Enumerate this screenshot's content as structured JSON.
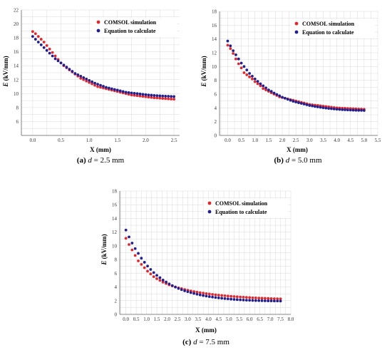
{
  "colors": {
    "simulation": "#e4262c",
    "equation": "#1f1f8f",
    "grid": "#d9d9d9",
    "axis": "#666666"
  },
  "chart_data": [
    {
      "type": "scatter",
      "caption": {
        "label": "(a)",
        "variable": "d",
        "rest": " = 2.5 mm"
      },
      "xlabel": "X (mm)",
      "ylabel": {
        "symbol": "E",
        "unit": " (kV/mm)"
      },
      "xlim": [
        -0.2,
        2.6
      ],
      "ylim": [
        4,
        22
      ],
      "xticks": [
        0.0,
        0.5,
        1.0,
        1.5,
        2.0,
        2.5
      ],
      "xtick_labels": [
        "0.0",
        "0.5",
        "1.0",
        "1.5",
        "2.0",
        "2.5"
      ],
      "yticks": [
        6,
        8,
        10,
        12,
        14,
        16,
        18,
        20,
        22
      ],
      "grid": true,
      "legend_position": "top-right",
      "series": [
        {
          "name": "COMSOL simulation",
          "color": "#e4262c",
          "x": [
            0.0,
            0.05,
            0.1,
            0.15,
            0.2,
            0.25,
            0.3,
            0.35,
            0.4,
            0.45,
            0.5,
            0.55,
            0.6,
            0.65,
            0.7,
            0.75,
            0.8,
            0.85,
            0.9,
            0.95,
            1.0,
            1.05,
            1.1,
            1.15,
            1.2,
            1.25,
            1.3,
            1.35,
            1.4,
            1.45,
            1.5,
            1.55,
            1.6,
            1.65,
            1.7,
            1.75,
            1.8,
            1.85,
            1.9,
            1.95,
            2.0,
            2.05,
            2.1,
            2.15,
            2.2,
            2.25,
            2.3,
            2.35,
            2.4,
            2.45,
            2.5
          ],
          "y": [
            18.9,
            18.6,
            18.2,
            17.8,
            17.4,
            16.9,
            16.4,
            15.9,
            15.4,
            14.9,
            14.4,
            14.0,
            13.7,
            13.4,
            13.1,
            12.8,
            12.5,
            12.2,
            12.0,
            11.8,
            11.6,
            11.4,
            11.2,
            11.0,
            10.9,
            10.8,
            10.7,
            10.6,
            10.5,
            10.4,
            10.3,
            10.2,
            10.1,
            10.0,
            9.9,
            9.8,
            9.75,
            9.7,
            9.65,
            9.6,
            9.55,
            9.5,
            9.45,
            9.4,
            9.38,
            9.35,
            9.3,
            9.28,
            9.25,
            9.22,
            9.2
          ]
        },
        {
          "name": "Equation to calculate",
          "color": "#1f1f8f",
          "x": [
            0.0,
            0.05,
            0.1,
            0.15,
            0.2,
            0.25,
            0.3,
            0.35,
            0.4,
            0.45,
            0.5,
            0.55,
            0.6,
            0.65,
            0.7,
            0.75,
            0.8,
            0.85,
            0.9,
            0.95,
            1.0,
            1.05,
            1.1,
            1.15,
            1.2,
            1.25,
            1.3,
            1.35,
            1.4,
            1.45,
            1.5,
            1.55,
            1.6,
            1.65,
            1.7,
            1.75,
            1.8,
            1.85,
            1.9,
            1.95,
            2.0,
            2.05,
            2.1,
            2.15,
            2.2,
            2.25,
            2.3,
            2.35,
            2.4,
            2.45,
            2.5
          ],
          "y": [
            18.2,
            17.8,
            17.4,
            17.0,
            16.6,
            16.2,
            15.8,
            15.4,
            15.0,
            14.7,
            14.4,
            14.1,
            13.8,
            13.5,
            13.2,
            12.9,
            12.7,
            12.5,
            12.3,
            12.1,
            11.9,
            11.7,
            11.5,
            11.35,
            11.2,
            11.05,
            10.9,
            10.8,
            10.7,
            10.6,
            10.5,
            10.4,
            10.3,
            10.2,
            10.15,
            10.1,
            10.05,
            10.0,
            9.95,
            9.9,
            9.85,
            9.8,
            9.77,
            9.74,
            9.71,
            9.68,
            9.66,
            9.64,
            9.62,
            9.6,
            9.58
          ]
        }
      ]
    },
    {
      "type": "scatter",
      "caption": {
        "label": "(b)",
        "variable": "d",
        "rest": " = 5.0 mm"
      },
      "xlabel": "X (mm)",
      "ylabel": {
        "symbol": "E",
        "unit": " (kV/mm)"
      },
      "xlim": [
        -0.3,
        5.5
      ],
      "ylim": [
        0,
        18
      ],
      "xticks": [
        0.0,
        0.5,
        1.0,
        1.5,
        2.0,
        2.5,
        3.0,
        3.5,
        4.0,
        4.5,
        5.0,
        5.5
      ],
      "xtick_labels": [
        "0.0",
        "0.5",
        "1.0",
        "1.5",
        "2.0",
        "2.5",
        "3.0",
        "3.5",
        "4.0",
        "4.5",
        "5.0",
        "5.5"
      ],
      "yticks": [
        0,
        2,
        4,
        6,
        8,
        10,
        12,
        14,
        16,
        18
      ],
      "grid": true,
      "legend_position": "top-right",
      "series": [
        {
          "name": "COMSOL simulation",
          "color": "#e4262c",
          "x": [
            0.0,
            0.1,
            0.2,
            0.3,
            0.4,
            0.5,
            0.6,
            0.7,
            0.8,
            0.9,
            1.0,
            1.1,
            1.2,
            1.3,
            1.4,
            1.5,
            1.6,
            1.7,
            1.8,
            1.9,
            2.0,
            2.1,
            2.2,
            2.3,
            2.4,
            2.5,
            2.6,
            2.7,
            2.8,
            2.9,
            3.0,
            3.1,
            3.2,
            3.3,
            3.4,
            3.5,
            3.6,
            3.7,
            3.8,
            3.9,
            4.0,
            4.1,
            4.2,
            4.3,
            4.4,
            4.5,
            4.6,
            4.7,
            4.8,
            4.9,
            5.0
          ],
          "y": [
            13.1,
            12.6,
            11.9,
            11.1,
            10.4,
            9.8,
            9.1,
            8.8,
            8.5,
            8.2,
            7.8,
            7.5,
            7.2,
            6.8,
            6.6,
            6.4,
            6.2,
            6.0,
            5.8,
            5.6,
            5.5,
            5.4,
            5.3,
            5.2,
            5.1,
            5.0,
            4.9,
            4.8,
            4.7,
            4.6,
            4.5,
            4.45,
            4.4,
            4.35,
            4.3,
            4.25,
            4.2,
            4.15,
            4.1,
            4.05,
            4.0,
            3.98,
            3.96,
            3.94,
            3.92,
            3.9,
            3.88,
            3.86,
            3.84,
            3.82,
            3.8
          ]
        },
        {
          "name": "Equation to calculate",
          "color": "#1f1f8f",
          "x": [
            0.0,
            0.1,
            0.2,
            0.3,
            0.4,
            0.5,
            0.6,
            0.7,
            0.8,
            0.9,
            1.0,
            1.1,
            1.2,
            1.3,
            1.4,
            1.5,
            1.6,
            1.7,
            1.8,
            1.9,
            2.0,
            2.1,
            2.2,
            2.3,
            2.4,
            2.5,
            2.6,
            2.7,
            2.8,
            2.9,
            3.0,
            3.1,
            3.2,
            3.3,
            3.4,
            3.5,
            3.6,
            3.7,
            3.8,
            3.9,
            4.0,
            4.1,
            4.2,
            4.3,
            4.4,
            4.5,
            4.6,
            4.7,
            4.8,
            4.9,
            5.0
          ],
          "y": [
            13.7,
            13.0,
            12.3,
            11.7,
            11.1,
            10.5,
            10.0,
            9.5,
            9.0,
            8.6,
            8.2,
            7.85,
            7.5,
            7.2,
            6.9,
            6.6,
            6.4,
            6.15,
            5.95,
            5.75,
            5.55,
            5.4,
            5.25,
            5.1,
            4.95,
            4.85,
            4.75,
            4.65,
            4.55,
            4.45,
            4.35,
            4.28,
            4.2,
            4.14,
            4.08,
            4.02,
            3.97,
            3.92,
            3.88,
            3.84,
            3.8,
            3.77,
            3.74,
            3.72,
            3.7,
            3.68,
            3.66,
            3.65,
            3.64,
            3.63,
            3.62
          ]
        }
      ]
    },
    {
      "type": "scatter",
      "caption": {
        "label": "(c)",
        "variable": "d",
        "rest": " = 7.5 mm"
      },
      "xlabel": "X (mm)",
      "ylabel": {
        "symbol": "E",
        "unit": " (kV/mm)"
      },
      "xlim": [
        -0.3,
        8.0
      ],
      "ylim": [
        0,
        18
      ],
      "xticks": [
        0.0,
        0.5,
        1.0,
        1.5,
        2.0,
        2.5,
        3.0,
        3.5,
        4.0,
        4.5,
        5.0,
        5.5,
        6.0,
        6.5,
        7.0,
        7.5,
        8.0
      ],
      "xtick_labels": [
        "0.0",
        "0.5",
        "1.0",
        "1.5",
        "2.0",
        "2.5",
        "3.0",
        "3.5",
        "4.0",
        "4.5",
        "5.0",
        "5.5",
        "6.0",
        "6.5",
        "7.0",
        "7.5",
        "8.0"
      ],
      "yticks": [
        0,
        2,
        4,
        6,
        8,
        10,
        12,
        14,
        16,
        18
      ],
      "grid": true,
      "legend_position": "top-right",
      "series": [
        {
          "name": "COMSOL simulation",
          "color": "#e4262c",
          "x": [
            0.0,
            0.15,
            0.3,
            0.45,
            0.6,
            0.75,
            0.9,
            1.05,
            1.2,
            1.35,
            1.5,
            1.65,
            1.8,
            1.95,
            2.1,
            2.25,
            2.4,
            2.55,
            2.7,
            2.85,
            3.0,
            3.15,
            3.3,
            3.45,
            3.6,
            3.75,
            3.9,
            4.05,
            4.2,
            4.35,
            4.5,
            4.65,
            4.8,
            4.95,
            5.1,
            5.25,
            5.4,
            5.55,
            5.7,
            5.85,
            6.0,
            6.15,
            6.3,
            6.45,
            6.6,
            6.75,
            6.9,
            7.05,
            7.2,
            7.35,
            7.5
          ],
          "y": [
            11.1,
            10.2,
            9.4,
            8.6,
            7.8,
            7.3,
            6.8,
            6.3,
            5.9,
            5.5,
            5.2,
            4.95,
            4.7,
            4.5,
            4.3,
            4.15,
            4.0,
            3.87,
            3.75,
            3.63,
            3.52,
            3.42,
            3.33,
            3.25,
            3.17,
            3.1,
            3.03,
            2.97,
            2.91,
            2.86,
            2.81,
            2.76,
            2.72,
            2.68,
            2.64,
            2.6,
            2.57,
            2.54,
            2.51,
            2.48,
            2.45,
            2.42,
            2.4,
            2.38,
            2.36,
            2.34,
            2.32,
            2.3,
            2.28,
            2.27,
            2.26
          ]
        },
        {
          "name": "Equation to calculate",
          "color": "#1f1f8f",
          "x": [
            0.0,
            0.15,
            0.3,
            0.45,
            0.6,
            0.75,
            0.9,
            1.05,
            1.2,
            1.35,
            1.5,
            1.65,
            1.8,
            1.95,
            2.1,
            2.25,
            2.4,
            2.55,
            2.7,
            2.85,
            3.0,
            3.15,
            3.3,
            3.45,
            3.6,
            3.75,
            3.9,
            4.05,
            4.2,
            4.35,
            4.5,
            4.65,
            4.8,
            4.95,
            5.1,
            5.25,
            5.4,
            5.55,
            5.7,
            5.85,
            6.0,
            6.15,
            6.3,
            6.45,
            6.6,
            6.75,
            6.9,
            7.05,
            7.2,
            7.35,
            7.5
          ],
          "y": [
            12.3,
            11.3,
            10.4,
            9.6,
            8.9,
            8.2,
            7.6,
            7.05,
            6.55,
            6.1,
            5.7,
            5.35,
            5.0,
            4.72,
            4.45,
            4.2,
            3.98,
            3.78,
            3.6,
            3.44,
            3.3,
            3.17,
            3.05,
            2.94,
            2.84,
            2.75,
            2.67,
            2.59,
            2.52,
            2.46,
            2.4,
            2.35,
            2.3,
            2.26,
            2.22,
            2.18,
            2.15,
            2.12,
            2.09,
            2.07,
            2.05,
            2.03,
            2.01,
            2.0,
            1.99,
            1.98,
            1.97,
            1.96,
            1.95,
            1.95,
            1.94
          ]
        }
      ]
    }
  ]
}
